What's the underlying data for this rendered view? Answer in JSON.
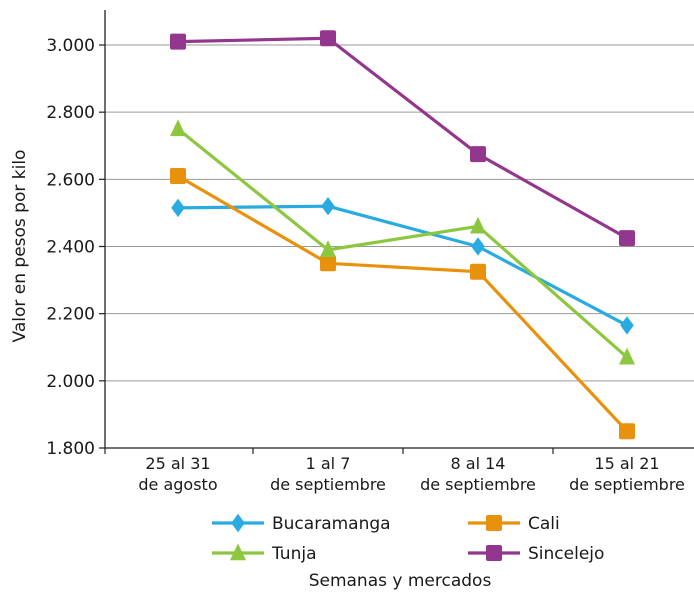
{
  "chart_data": {
    "type": "line",
    "title": "",
    "xlabel": "Semanas y mercados",
    "ylabel": "Valor en pesos por kilo",
    "ylim": [
      1800,
      3100
    ],
    "yticks": [
      {
        "value": 1800,
        "label": "1.800"
      },
      {
        "value": 2000,
        "label": "2.000"
      },
      {
        "value": 2200,
        "label": "2.200"
      },
      {
        "value": 2400,
        "label": "2.400"
      },
      {
        "value": 2600,
        "label": "2.600"
      },
      {
        "value": 2800,
        "label": "2.800"
      },
      {
        "value": 3000,
        "label": "3.000"
      }
    ],
    "categories": [
      {
        "line1": "25 al 31",
        "line2": "de agosto"
      },
      {
        "line1": "1 al 7",
        "line2": "de septiembre"
      },
      {
        "line1": "8 al 14",
        "line2": "de septiembre"
      },
      {
        "line1": "15 al 21",
        "line2": "de septiembre"
      }
    ],
    "grid": true,
    "legend_position": "bottom",
    "series": [
      {
        "name": "Bucaramanga",
        "color": "#29abe2",
        "marker": "diamond",
        "values": [
          2515,
          2520,
          2400,
          2165
        ]
      },
      {
        "name": "Cali",
        "color": "#e8910c",
        "marker": "square",
        "values": [
          2610,
          2350,
          2325,
          1850
        ]
      },
      {
        "name": "Tunja",
        "color": "#8dc63f",
        "marker": "triangle",
        "values": [
          2750,
          2390,
          2460,
          2070
        ]
      },
      {
        "name": "Sincelejo",
        "color": "#93378e",
        "marker": "square",
        "values": [
          3010,
          3020,
          2675,
          2425
        ]
      }
    ]
  }
}
